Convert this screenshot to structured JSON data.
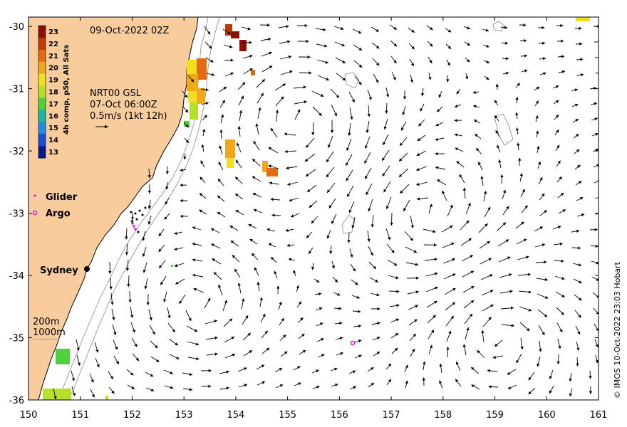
{
  "header": {
    "timestamp": "09-Oct-2022 02Z"
  },
  "current_source": {
    "line1": "NRT00 GSL",
    "line2": "07-Oct 06:00Z",
    "scale_label": "0.5m/s (1kt 12h)"
  },
  "colorbar": {
    "label": "4h comp, p50, All Sats",
    "ticks": [
      "23",
      "22",
      "21",
      "20",
      "19",
      "18",
      "17",
      "16",
      "15",
      "14",
      "13"
    ],
    "colors": [
      "#8a1005",
      "#c03a06",
      "#e26a10",
      "#f0a81c",
      "#f2e020",
      "#b6e02a",
      "#4ed23c",
      "#18b8a0",
      "#1a8ee6",
      "#1a4ed8",
      "#0a1a8a"
    ]
  },
  "legend": {
    "glider": "Glider",
    "argo": "Argo",
    "glider_color": "#e020e0",
    "argo_color": "#e020e0"
  },
  "city": {
    "name": "Sydney"
  },
  "isobaths": {
    "shallow": "200m",
    "deep": "1000m"
  },
  "credit": "© IMOS 10-Oct-2022 23:03 Hobart",
  "axes": {
    "x_ticks": [
      "150",
      "151",
      "152",
      "153",
      "154",
      "155",
      "156",
      "157",
      "158",
      "159",
      "160",
      "161"
    ],
    "y_ticks": [
      "-30",
      "-31",
      "-32",
      "-33",
      "-34",
      "-35",
      "-36"
    ],
    "lon_range": [
      150,
      161
    ],
    "lat_range": [
      -36,
      -29.85
    ]
  },
  "colors": {
    "land": "#f8cc9c",
    "arrows": "#000000"
  }
}
